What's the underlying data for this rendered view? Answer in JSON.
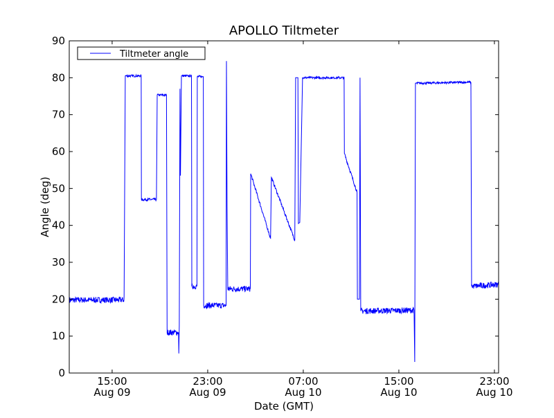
{
  "chart_data": {
    "type": "line",
    "title": "APOLLO Tiltmeter",
    "xlabel": "Date (GMT)",
    "ylabel": "Angle (deg)",
    "x_units": "hours since Aug 09 00:00 GMT",
    "xlim": [
      11.41,
      47.35
    ],
    "ylim": [
      0,
      90
    ],
    "yticks": [
      0,
      10,
      20,
      30,
      40,
      50,
      60,
      70,
      80,
      90
    ],
    "xticks": [
      {
        "value": 15,
        "time": "15:00",
        "date": "Aug 09"
      },
      {
        "value": 23,
        "time": "23:00",
        "date": "Aug 09"
      },
      {
        "value": 31,
        "time": "07:00",
        "date": "Aug 10"
      },
      {
        "value": 39,
        "time": "15:00",
        "date": "Aug 10"
      },
      {
        "value": 47,
        "time": "23:00",
        "date": "Aug 10"
      }
    ],
    "grid": false,
    "legend": {
      "placement": "top-left",
      "entries": [
        "Tiltmeter angle"
      ]
    },
    "series": [
      {
        "name": "Tiltmeter angle",
        "color": "#0000ff",
        "points": [
          [
            11.41,
            19.8
          ],
          [
            15.99,
            19.8
          ],
          [
            16.0,
            20.8
          ],
          [
            16.1,
            80.5
          ],
          [
            17.43,
            80.5
          ],
          [
            17.45,
            47
          ],
          [
            18.71,
            47
          ],
          [
            18.77,
            75.3
          ],
          [
            19.55,
            75.3
          ],
          [
            19.6,
            11
          ],
          [
            20.56,
            11
          ],
          [
            20.58,
            5.3
          ],
          [
            20.62,
            13
          ],
          [
            20.68,
            77
          ],
          [
            20.72,
            53.5
          ],
          [
            20.8,
            80.5
          ],
          [
            21.64,
            80.5
          ],
          [
            21.67,
            23.5
          ],
          [
            22.1,
            23.5
          ],
          [
            22.13,
            80.3
          ],
          [
            22.63,
            80.3
          ],
          [
            22.66,
            18.3
          ],
          [
            24.54,
            18.3
          ],
          [
            24.57,
            84.5
          ],
          [
            24.62,
            45
          ],
          [
            24.68,
            22.8
          ],
          [
            26.57,
            22.8
          ],
          [
            26.6,
            54
          ],
          [
            28.26,
            36.5
          ],
          [
            28.33,
            53
          ],
          [
            30.29,
            36
          ],
          [
            30.36,
            80
          ],
          [
            30.55,
            80
          ],
          [
            30.59,
            40.5
          ],
          [
            30.71,
            40.8
          ],
          [
            30.94,
            80
          ],
          [
            34.42,
            80
          ],
          [
            34.44,
            59.5
          ],
          [
            35.5,
            49
          ],
          [
            35.53,
            20
          ],
          [
            35.7,
            20
          ],
          [
            35.75,
            80
          ],
          [
            35.81,
            16.8
          ],
          [
            40.27,
            17
          ],
          [
            40.33,
            3
          ],
          [
            40.39,
            78.5
          ],
          [
            45.03,
            78.8
          ],
          [
            45.09,
            23.5
          ],
          [
            47.35,
            24
          ]
        ]
      }
    ]
  }
}
